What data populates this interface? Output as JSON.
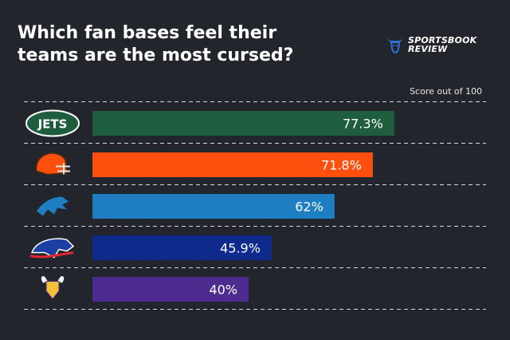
{
  "title_line1": "Which fan bases feel their",
  "title_line2": "teams are the most cursed?",
  "brand": {
    "line1": "SPORTSBOOK",
    "line2": "REVIEW",
    "color": "#2f6fd6"
  },
  "score_note": "Score out of 100",
  "chart_data": {
    "type": "bar",
    "orientation": "horizontal",
    "categories": [
      "New York Jets",
      "Cleveland Browns",
      "Detroit Lions",
      "Buffalo Bills",
      "Minnesota Vikings"
    ],
    "category_icons": [
      "jets-logo",
      "browns-helmet-logo",
      "lions-logo",
      "bills-logo",
      "vikings-logo"
    ],
    "values": [
      77.3,
      71.8,
      62,
      45.9,
      40
    ],
    "value_labels": [
      "77.3%",
      "71.8%",
      "62%",
      "45.9%",
      "40%"
    ],
    "colors": [
      "#1e5e3f",
      "#fe4f0f",
      "#1f7ec2",
      "#0d2a8c",
      "#4d2b8f"
    ],
    "xlim": [
      0,
      100
    ],
    "grid": "dashed separators between rows",
    "legend": "none"
  }
}
